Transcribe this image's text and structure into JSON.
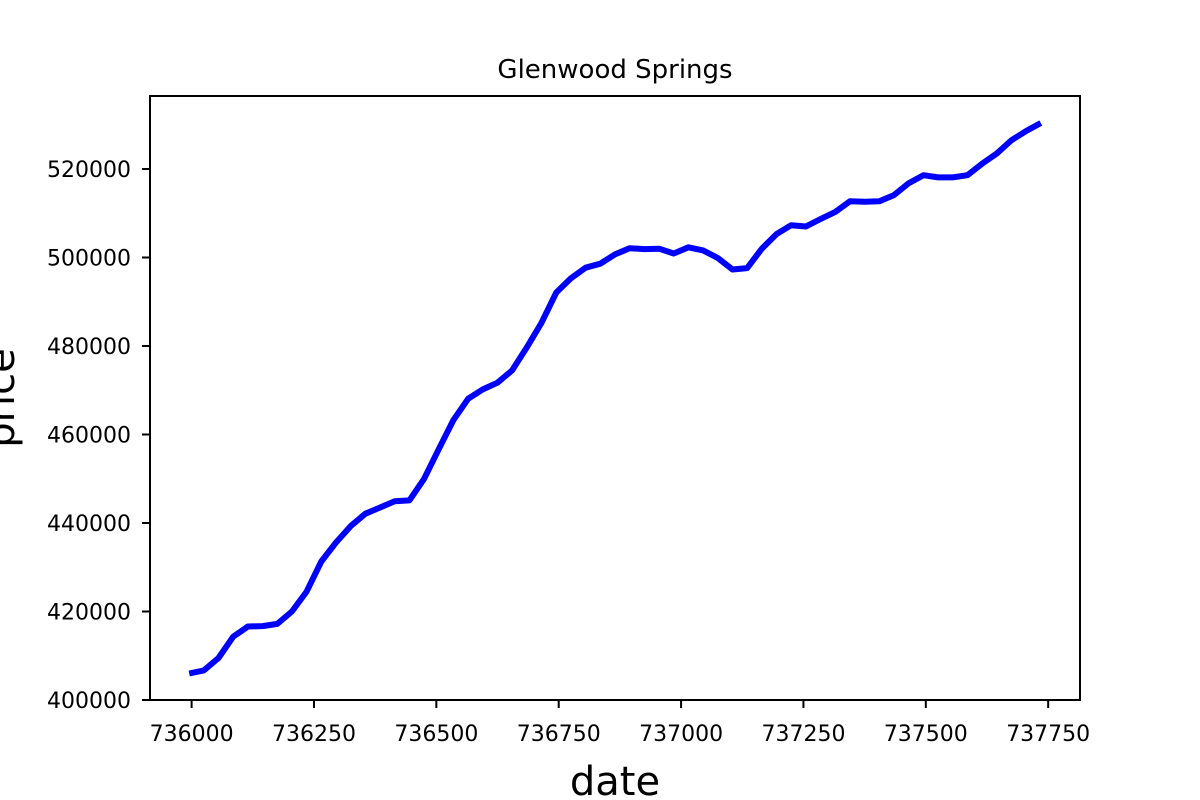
{
  "chart_data": {
    "type": "line",
    "title": "Glenwood Springs",
    "xlabel": "date",
    "ylabel": "price",
    "xlim": [
      735915,
      737815
    ],
    "ylim": [
      400000,
      536500
    ],
    "x_ticks": [
      736000,
      736250,
      736500,
      736750,
      737000,
      737250,
      737500,
      737750
    ],
    "y_ticks": [
      400000,
      420000,
      440000,
      460000,
      480000,
      500000,
      520000
    ],
    "grid": false,
    "legend": "none",
    "series": [
      {
        "color": "#0000ff",
        "x": [
          735995,
          736025,
          736055,
          736085,
          736115,
          736145,
          736175,
          736205,
          736235,
          736265,
          736295,
          736325,
          736355,
          736385,
          736415,
          736445,
          736475,
          736505,
          736535,
          736565,
          736595,
          736625,
          736655,
          736685,
          736715,
          736745,
          736775,
          736805,
          736835,
          736865,
          736895,
          736925,
          736955,
          736985,
          737015,
          737045,
          737075,
          737105,
          737135,
          737165,
          737195,
          737225,
          737255,
          737285,
          737315,
          737345,
          737375,
          737405,
          737435,
          737465,
          737495,
          737525,
          737555,
          737585,
          737615,
          737645,
          737675,
          737705,
          737735
        ],
        "y": [
          406000,
          406700,
          409500,
          414300,
          416600,
          416700,
          417200,
          420000,
          424500,
          431300,
          435600,
          439300,
          442100,
          443500,
          444900,
          445100,
          450000,
          456700,
          463300,
          468100,
          470200,
          471700,
          474500,
          479700,
          485300,
          492100,
          495300,
          497700,
          498600,
          500700,
          502100,
          501900,
          502000,
          500900,
          502300,
          501600,
          499900,
          497300,
          497600,
          502000,
          505300,
          507300,
          507000,
          508700,
          510300,
          512700,
          512600,
          512700,
          514100,
          516800,
          518600,
          518100,
          518100,
          518600,
          521200,
          523500,
          526500,
          528600,
          530400
        ]
      }
    ]
  }
}
